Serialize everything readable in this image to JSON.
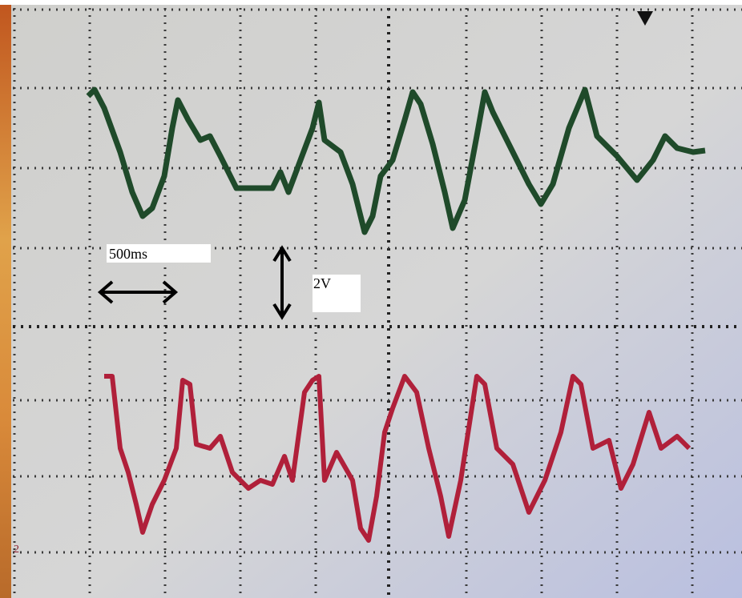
{
  "labels": {
    "time_scale": "500ms",
    "voltage_scale": "2V",
    "channel_marker": "2"
  }
}
